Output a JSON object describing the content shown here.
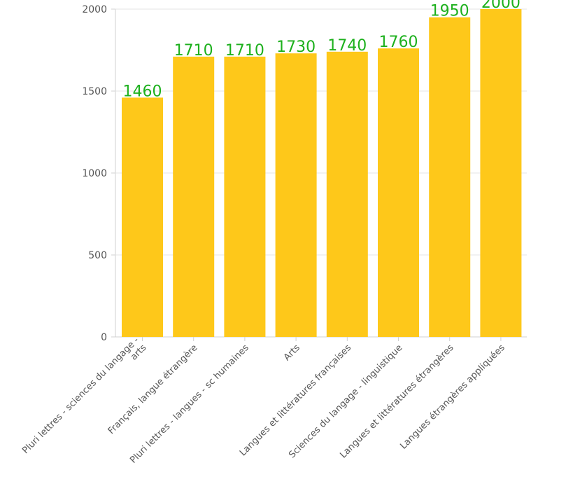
{
  "chart_data": {
    "type": "bar",
    "categories": [
      "Pluri lettres - sciences du langage - arts",
      "Français, langue étrangère",
      "Pluri lettres - langues - sc humaines",
      "Arts",
      "Langues et littératures françaises",
      "Sciences du langage - linguistique",
      "Langues et littératures étrangères",
      "Langues étrangères appliquées"
    ],
    "category_lines": [
      [
        "Pluri lettres - sciences du langage -",
        "arts"
      ],
      [
        "Français, langue étrangère"
      ],
      [
        "Pluri lettres - langues - sc humaines"
      ],
      [
        "Arts"
      ],
      [
        "Langues et littératures françaises"
      ],
      [
        "Sciences du langage - linguistique"
      ],
      [
        "Langues et littératures étrangères"
      ],
      [
        "Langues étrangères appliquées"
      ]
    ],
    "values": [
      1460,
      1710,
      1710,
      1730,
      1740,
      1760,
      1950,
      2000
    ],
    "data_labels": [
      "1460",
      "1710",
      "1710",
      "1730",
      "1740",
      "1760",
      "1950",
      "2000"
    ],
    "ylim": [
      0,
      2000
    ],
    "yticks": [
      0,
      500,
      1000,
      1500,
      2000
    ],
    "ytick_labels": [
      "0",
      "500",
      "1000",
      "1500",
      "2000"
    ],
    "grid": true,
    "colors": {
      "bar": "#FEC81A",
      "data_label": "#1DB01D"
    },
    "title": "",
    "xlabel": "",
    "ylabel": ""
  }
}
